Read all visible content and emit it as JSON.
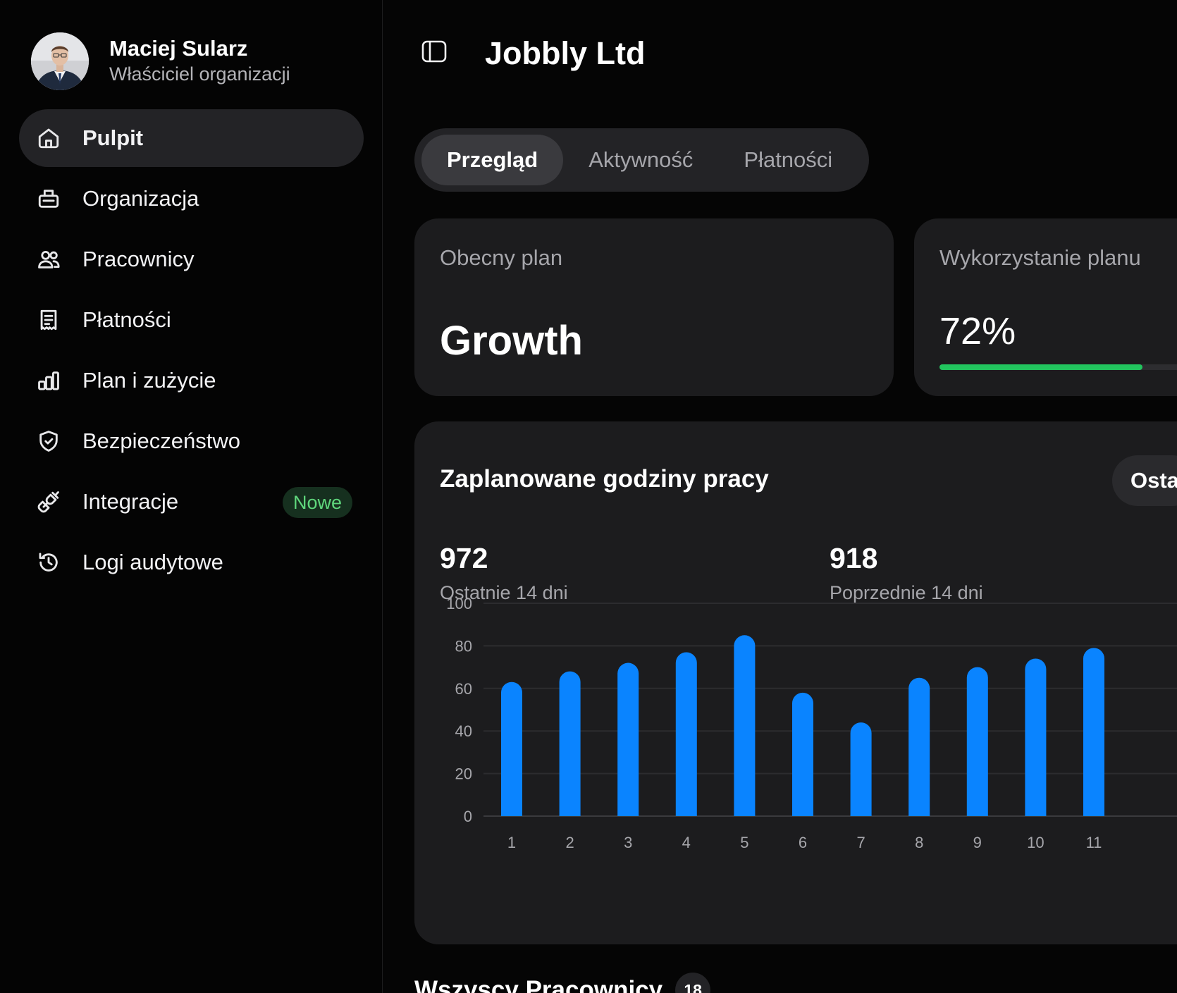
{
  "profile": {
    "name": "Maciej Sularz",
    "role": "Właściciel organizacji"
  },
  "nav": {
    "items": [
      {
        "label": "Pulpit",
        "icon": "home-icon",
        "active": true
      },
      {
        "label": "Organizacja",
        "icon": "building-icon",
        "active": false
      },
      {
        "label": "Pracownicy",
        "icon": "users-icon",
        "active": false
      },
      {
        "label": "Płatności",
        "icon": "receipt-icon",
        "active": false
      },
      {
        "label": "Plan i zużycie",
        "icon": "bar-chart-icon",
        "active": false
      },
      {
        "label": "Bezpieczeństwo",
        "icon": "shield-icon",
        "active": false
      },
      {
        "label": "Integracje",
        "icon": "plug-icon",
        "active": false,
        "badge": "Nowe"
      },
      {
        "label": "Logi audytowe",
        "icon": "history-icon",
        "active": false
      }
    ]
  },
  "header": {
    "org_name": "Jobbly Ltd",
    "toggle_icon": "sidebar-toggle-icon"
  },
  "tabs": [
    {
      "label": "Przegląd",
      "active": true
    },
    {
      "label": "Aktywność",
      "active": false
    },
    {
      "label": "Płatności",
      "active": false
    }
  ],
  "plan_card": {
    "label": "Obecny plan",
    "value": "Growth"
  },
  "usage_card": {
    "label": "Wykorzystanie planu",
    "value": "72%",
    "progress": 0.72
  },
  "hours_card": {
    "title": "Zaplanowane godziny pracy",
    "range_button": "Osta",
    "stats": [
      {
        "value": "972",
        "label": "Ostatnie 14 dni"
      },
      {
        "value": "918",
        "label": "Poprzednie 14 dni"
      }
    ]
  },
  "chart_data": {
    "type": "bar",
    "categories": [
      "1",
      "2",
      "3",
      "4",
      "5",
      "6",
      "7",
      "8",
      "9",
      "10",
      "11"
    ],
    "values": [
      63,
      68,
      72,
      77,
      85,
      58,
      44,
      65,
      70,
      74,
      79
    ],
    "ylim": [
      0,
      100
    ],
    "yticks": [
      "0",
      "20",
      "40",
      "60",
      "80",
      "100"
    ],
    "grid": true,
    "bar_color": "#0a84ff",
    "title": "Zaplanowane godziny pracy"
  },
  "employees_section": {
    "title": "Wszyscy Pracownicy",
    "count": "18"
  },
  "colors": {
    "accent_green": "#22c55e",
    "badge_green": "#5fd67c",
    "bar_blue": "#0a84ff"
  }
}
